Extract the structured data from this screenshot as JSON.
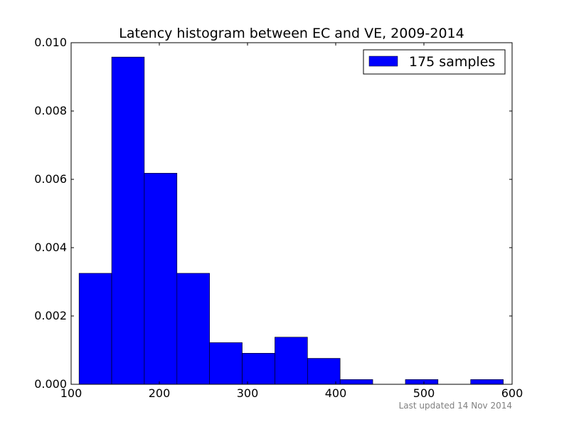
{
  "chart_data": {
    "type": "bar",
    "subtype": "histogram",
    "title": "Latency histogram between EC and VE, 2009-2014",
    "xlabel": "",
    "ylabel": "",
    "xlim": [
      100,
      600
    ],
    "ylim": [
      0,
      0.01
    ],
    "xticks": [
      {
        "value": 100,
        "label": "100"
      },
      {
        "value": 200,
        "label": "200"
      },
      {
        "value": 300,
        "label": "300"
      },
      {
        "value": 400,
        "label": "400"
      },
      {
        "value": 500,
        "label": "500"
      },
      {
        "value": 600,
        "label": "600"
      }
    ],
    "yticks": [
      {
        "value": 0,
        "label": "0.000"
      },
      {
        "value": 0.002,
        "label": "0.002"
      },
      {
        "value": 0.004,
        "label": "0.004"
      },
      {
        "value": 0.006,
        "label": "0.006"
      },
      {
        "value": 0.008,
        "label": "0.008"
      },
      {
        "value": 0.01,
        "label": "0.010"
      }
    ],
    "grid": false,
    "legend_position": "top-right",
    "series": [
      {
        "name": "175 samples",
        "color": "#0000ff",
        "edge_color": "#000000",
        "bins": [
          {
            "x0": 109,
            "x1": 146,
            "value": 0.00325
          },
          {
            "x0": 146,
            "x1": 183,
            "value": 0.00958
          },
          {
            "x0": 183,
            "x1": 220,
            "value": 0.00618
          },
          {
            "x0": 220,
            "x1": 257,
            "value": 0.00325
          },
          {
            "x0": 257,
            "x1": 294,
            "value": 0.00122
          },
          {
            "x0": 294,
            "x1": 331,
            "value": 0.00091
          },
          {
            "x0": 331,
            "x1": 368,
            "value": 0.00138
          },
          {
            "x0": 368,
            "x1": 405,
            "value": 0.00076
          },
          {
            "x0": 405,
            "x1": 442,
            "value": 0.00014
          },
          {
            "x0": 442,
            "x1": 479,
            "value": 0
          },
          {
            "x0": 479,
            "x1": 516,
            "value": 0.00014
          },
          {
            "x0": 516,
            "x1": 553,
            "value": 0
          },
          {
            "x0": 553,
            "x1": 590,
            "value": 0.00014
          }
        ]
      }
    ],
    "footnote": "Last updated 14 Nov 2014"
  }
}
